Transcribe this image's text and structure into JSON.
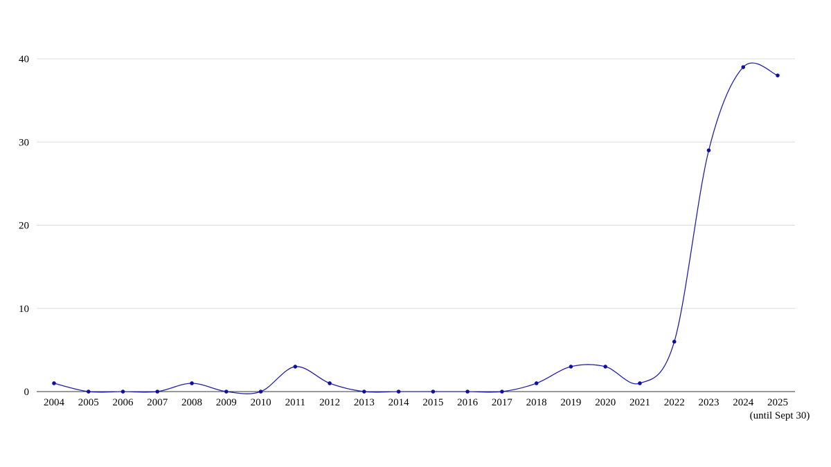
{
  "chart_data": {
    "type": "line",
    "smooth": true,
    "categories": [
      "2004",
      "2005",
      "2006",
      "2007",
      "2008",
      "2009",
      "2010",
      "2011",
      "2012",
      "2013",
      "2014",
      "2015",
      "2016",
      "2017",
      "2018",
      "2019",
      "2020",
      "2021",
      "2022",
      "2023",
      "2024",
      "2025"
    ],
    "category_sublabels": {
      "2025": "(until Sept 30)"
    },
    "series": [
      {
        "values": [
          1,
          0,
          0,
          0,
          1,
          0,
          0,
          3,
          1,
          0,
          0,
          0,
          0,
          0,
          1,
          3,
          3,
          1,
          6,
          29,
          39,
          38
        ],
        "color": "#1f1fa8",
        "marker_color": "#1010a0"
      }
    ],
    "ylim": [
      0,
      40
    ],
    "yticks": [
      0,
      10,
      20,
      30,
      40
    ],
    "grid": true,
    "title": "",
    "xlabel": "",
    "ylabel": ""
  }
}
